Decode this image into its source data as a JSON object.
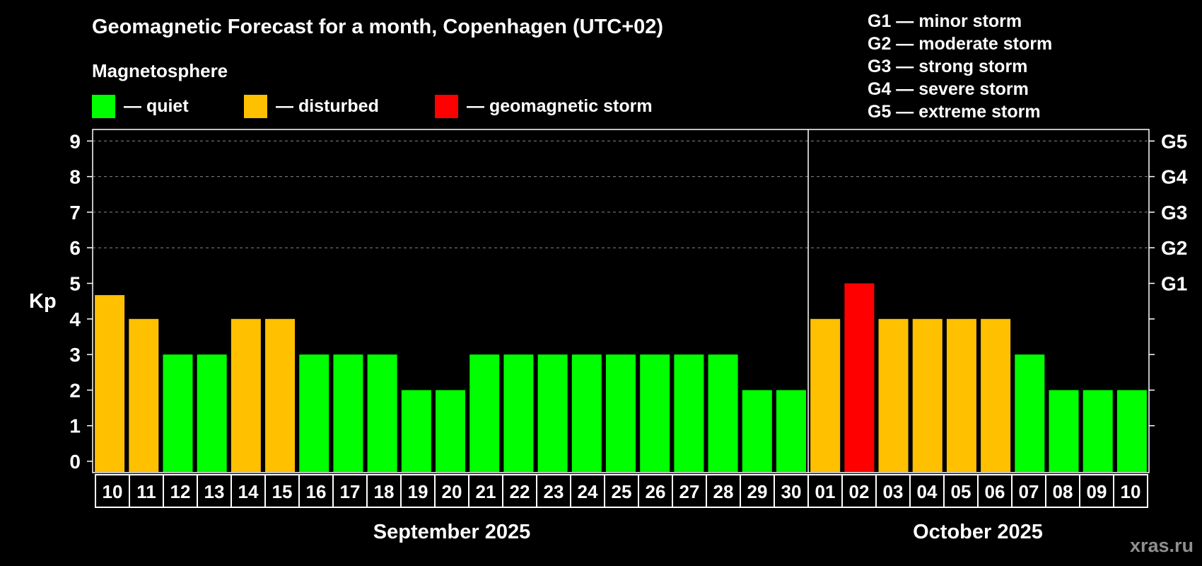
{
  "title": "Geomagnetic Forecast for a month, Copenhagen (UTC+02)",
  "subtitle": "Magnetosphere",
  "legend": [
    {
      "label": "— quiet",
      "color": "#00ff00"
    },
    {
      "label": "— disturbed",
      "color": "#ffc000"
    },
    {
      "label": "— geomagnetic storm",
      "color": "#ff0000"
    }
  ],
  "g_scale": [
    "G1 — minor storm",
    "G2 — moderate storm",
    "G3 — strong storm",
    "G4 — severe storm",
    "G5 — extreme storm"
  ],
  "watermark": "xras.ru",
  "colors": {
    "quiet": "#00ff00",
    "disturbed": "#ffc000",
    "storm": "#ff0000"
  },
  "chart_data": {
    "type": "bar",
    "title": "Geomagnetic Forecast for a month, Copenhagen (UTC+02)",
    "ylabel": "Kp",
    "ylim": [
      0,
      9
    ],
    "yticks": [
      0,
      1,
      2,
      3,
      4,
      5,
      6,
      7,
      8,
      9
    ],
    "right_axis": [
      {
        "kp": 5,
        "label": "G1"
      },
      {
        "kp": 6,
        "label": "G2"
      },
      {
        "kp": 7,
        "label": "G3"
      },
      {
        "kp": 8,
        "label": "G4"
      },
      {
        "kp": 9,
        "label": "G5"
      }
    ],
    "categories": [
      "10",
      "11",
      "12",
      "13",
      "14",
      "15",
      "16",
      "17",
      "18",
      "19",
      "20",
      "21",
      "22",
      "23",
      "24",
      "25",
      "26",
      "27",
      "28",
      "29",
      "30",
      "01",
      "02",
      "03",
      "04",
      "05",
      "06",
      "07",
      "08",
      "09",
      "10"
    ],
    "values": [
      4.67,
      4,
      3,
      3,
      4,
      4,
      3,
      3,
      3,
      2,
      2,
      3,
      3,
      3,
      3,
      3,
      3,
      3,
      3,
      2,
      2,
      4,
      5,
      4,
      4,
      4,
      4,
      3,
      2,
      2,
      2
    ],
    "status": [
      "disturbed",
      "disturbed",
      "quiet",
      "quiet",
      "disturbed",
      "disturbed",
      "quiet",
      "quiet",
      "quiet",
      "quiet",
      "quiet",
      "quiet",
      "quiet",
      "quiet",
      "quiet",
      "quiet",
      "quiet",
      "quiet",
      "quiet",
      "quiet",
      "quiet",
      "disturbed",
      "storm",
      "disturbed",
      "disturbed",
      "disturbed",
      "disturbed",
      "quiet",
      "quiet",
      "quiet",
      "quiet"
    ],
    "months": [
      {
        "label": "September 2025",
        "start": 0,
        "count": 21
      },
      {
        "label": "October 2025",
        "start": 21,
        "count": 10
      }
    ],
    "grid_lines": [
      6,
      7,
      8,
      9
    ]
  }
}
